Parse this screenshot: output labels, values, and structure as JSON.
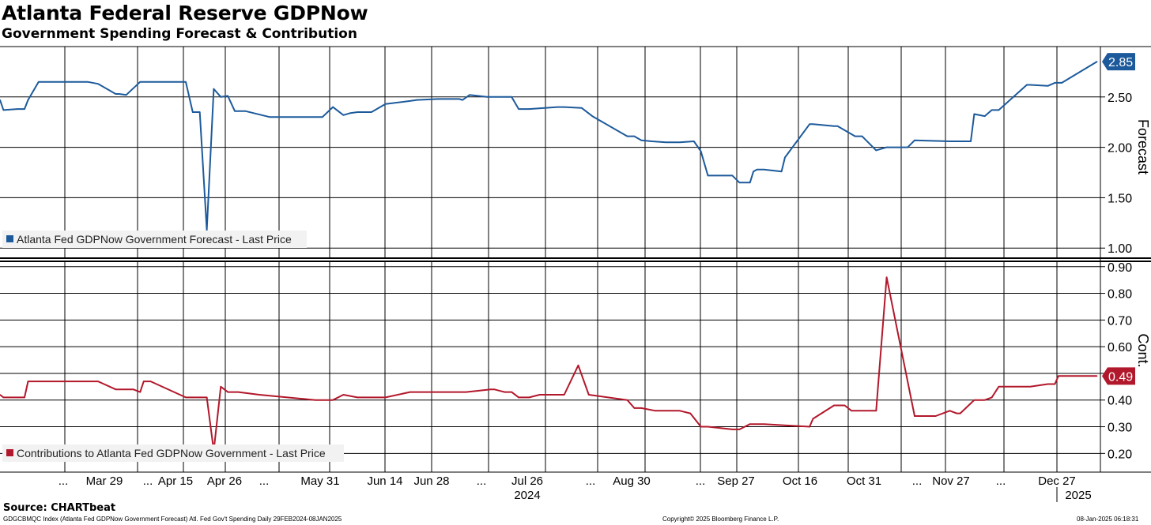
{
  "title": "Atlanta Federal Reserve GDPNow",
  "subtitle": "Government Spending Forecast & Contribution",
  "source": "Source: CHARTbeat",
  "footer": {
    "left": "GDGCBMQC Index (Atlanta Fed GDPNow Government Forecast) Atl. Fed Gov't Spending  Daily 29FEB2024-08JAN2025",
    "center": "Copyright© 2025 Bloomberg Finance L.P.",
    "right": "08-Jan-2025 06:18:31"
  },
  "x_axis": {
    "tick_labels": [
      "...",
      "Mar 29",
      "...",
      "Apr 15",
      "Apr 26",
      "...",
      "May 31",
      "Jun 14",
      "Jun 28",
      "...",
      "Jul 26",
      "...",
      "Aug 30",
      "...",
      "Sep 27",
      "Oct 16",
      "Oct 31",
      "...",
      "Nov 27",
      "...",
      "Dec 27"
    ],
    "year_labels": [
      "2024",
      "2025"
    ]
  },
  "colors": {
    "forecast": "#1d5a9b",
    "contribution": "#b2182b"
  },
  "chart_data": [
    {
      "type": "line",
      "ylabel": "Forecast",
      "ylim": [
        0.9,
        3.0
      ],
      "yticks": [
        "1.00",
        "1.50",
        "2.00",
        "2.50"
      ],
      "last_value": "2.85",
      "legend": "Atlanta Fed GDPNow Government Forecast - Last Price",
      "series": [
        {
          "name": "Atlanta Fed GDPNow Government Forecast - Last Price",
          "x": [
            "2024-02-29",
            "2024-03-01",
            "2024-03-05",
            "2024-03-07",
            "2024-03-08",
            "2024-03-11",
            "2024-03-25",
            "2024-03-28",
            "2024-04-02",
            "2024-04-03",
            "2024-04-05",
            "2024-04-09",
            "2024-04-22",
            "2024-04-24",
            "2024-04-25",
            "2024-04-26",
            "2024-04-28",
            "2024-04-30",
            "2024-05-02",
            "2024-05-04",
            "2024-05-06",
            "2024-05-09",
            "2024-05-16",
            "2024-05-29",
            "2024-05-31",
            "2024-06-03",
            "2024-06-06",
            "2024-06-08",
            "2024-06-10",
            "2024-06-14",
            "2024-06-18",
            "2024-06-25",
            "2024-06-27",
            "2024-07-03",
            "2024-07-09",
            "2024-07-10",
            "2024-07-12",
            "2024-07-17",
            "2024-07-24",
            "2024-07-26",
            "2024-07-29",
            "2024-08-06",
            "2024-08-08",
            "2024-08-13",
            "2024-08-16",
            "2024-08-26",
            "2024-08-28",
            "2024-08-30",
            "2024-09-02",
            "2024-09-06",
            "2024-09-10",
            "2024-09-14",
            "2024-09-16",
            "2024-09-18",
            "2024-09-25",
            "2024-09-27",
            "2024-09-30",
            "2024-10-01",
            "2024-10-02",
            "2024-10-04",
            "2024-10-09",
            "2024-10-10",
            "2024-10-17",
            "2024-10-18",
            "2024-10-24",
            "2024-10-25",
            "2024-10-30",
            "2024-11-01",
            "2024-11-05",
            "2024-11-08",
            "2024-11-14",
            "2024-11-16",
            "2024-11-26",
            "2024-11-29",
            "2024-12-02",
            "2024-12-03",
            "2024-12-06",
            "2024-12-08",
            "2024-12-10",
            "2024-12-18",
            "2024-12-19",
            "2024-12-24",
            "2024-12-26",
            "2024-12-28",
            "2025-01-07"
          ],
          "values": [
            2.47,
            2.37,
            2.38,
            2.38,
            2.47,
            2.65,
            2.65,
            2.63,
            2.53,
            2.53,
            2.52,
            2.65,
            2.65,
            2.35,
            2.35,
            2.35,
            1.18,
            2.58,
            2.5,
            2.51,
            2.36,
            2.36,
            2.3,
            2.3,
            2.3,
            2.4,
            2.32,
            2.34,
            2.35,
            2.35,
            2.43,
            2.46,
            2.47,
            2.48,
            2.48,
            2.47,
            2.52,
            2.5,
            2.5,
            2.38,
            2.38,
            2.4,
            2.4,
            2.39,
            2.31,
            2.11,
            2.11,
            2.07,
            2.06,
            2.05,
            2.05,
            2.06,
            1.96,
            1.72,
            1.72,
            1.65,
            1.65,
            1.76,
            1.78,
            1.78,
            1.76,
            1.9,
            2.23,
            2.23,
            2.21,
            2.21,
            2.11,
            2.11,
            1.97,
            2.0,
            2.0,
            2.07,
            2.06,
            2.06,
            2.06,
            2.33,
            2.31,
            2.37,
            2.37,
            2.62,
            2.62,
            2.61,
            2.64,
            2.64,
            2.85
          ]
        }
      ]
    },
    {
      "type": "line",
      "ylabel": "Cont.",
      "ylim": [
        0.13,
        0.92
      ],
      "yticks": [
        "0.20",
        "0.30",
        "0.40",
        "0.50",
        "0.60",
        "0.70",
        "0.80",
        "0.90"
      ],
      "last_value": "0.49",
      "legend": "Contributions to Atlanta Fed GDPNow Government - Last Price",
      "series": [
        {
          "name": "Contributions to Atlanta Fed GDPNow Government - Last Price",
          "x": [
            "2024-02-29",
            "2024-03-01",
            "2024-03-05",
            "2024-03-07",
            "2024-03-08",
            "2024-03-11",
            "2024-03-25",
            "2024-03-28",
            "2024-04-02",
            "2024-04-05",
            "2024-04-07",
            "2024-04-09",
            "2024-04-10",
            "2024-04-12",
            "2024-04-22",
            "2024-04-24",
            "2024-04-26",
            "2024-04-28",
            "2024-04-30",
            "2024-05-02",
            "2024-05-04",
            "2024-05-07",
            "2024-05-13",
            "2024-05-29",
            "2024-05-31",
            "2024-06-03",
            "2024-06-06",
            "2024-06-10",
            "2024-06-14",
            "2024-06-18",
            "2024-06-25",
            "2024-06-27",
            "2024-07-03",
            "2024-07-08",
            "2024-07-11",
            "2024-07-18",
            "2024-07-19",
            "2024-07-22",
            "2024-07-24",
            "2024-07-26",
            "2024-07-29",
            "2024-08-01",
            "2024-08-08",
            "2024-08-12",
            "2024-08-15",
            "2024-08-26",
            "2024-08-28",
            "2024-08-30",
            "2024-09-03",
            "2024-09-06",
            "2024-09-10",
            "2024-09-13",
            "2024-09-16",
            "2024-09-18",
            "2024-09-25",
            "2024-09-27",
            "2024-09-30",
            "2024-10-02",
            "2024-10-04",
            "2024-10-17",
            "2024-10-18",
            "2024-10-24",
            "2024-10-25",
            "2024-10-27",
            "2024-10-29",
            "2024-11-05",
            "2024-11-08",
            "2024-11-16",
            "2024-11-22",
            "2024-11-26",
            "2024-11-28",
            "2024-11-29",
            "2024-12-03",
            "2024-12-06",
            "2024-12-08",
            "2024-12-10",
            "2024-12-18",
            "2024-12-19",
            "2024-12-24",
            "2024-12-26",
            "2024-12-27",
            "2024-12-29",
            "2025-01-07"
          ],
          "values": [
            0.42,
            0.41,
            0.41,
            0.41,
            0.47,
            0.47,
            0.47,
            0.47,
            0.44,
            0.44,
            0.44,
            0.43,
            0.47,
            0.47,
            0.41,
            0.41,
            0.41,
            0.41,
            0.21,
            0.45,
            0.43,
            0.43,
            0.42,
            0.4,
            0.4,
            0.4,
            0.42,
            0.41,
            0.41,
            0.41,
            0.43,
            0.43,
            0.43,
            0.43,
            0.43,
            0.44,
            0.44,
            0.43,
            0.43,
            0.41,
            0.41,
            0.42,
            0.42,
            0.53,
            0.42,
            0.4,
            0.37,
            0.37,
            0.36,
            0.36,
            0.36,
            0.35,
            0.3,
            0.3,
            0.29,
            0.29,
            0.31,
            0.31,
            0.31,
            0.3,
            0.33,
            0.38,
            0.38,
            0.38,
            0.36,
            0.36,
            0.86,
            0.34,
            0.34,
            0.36,
            0.35,
            0.35,
            0.4,
            0.4,
            0.41,
            0.45,
            0.45,
            0.45,
            0.46,
            0.46,
            0.49,
            0.49,
            0.49
          ]
        }
      ]
    }
  ]
}
